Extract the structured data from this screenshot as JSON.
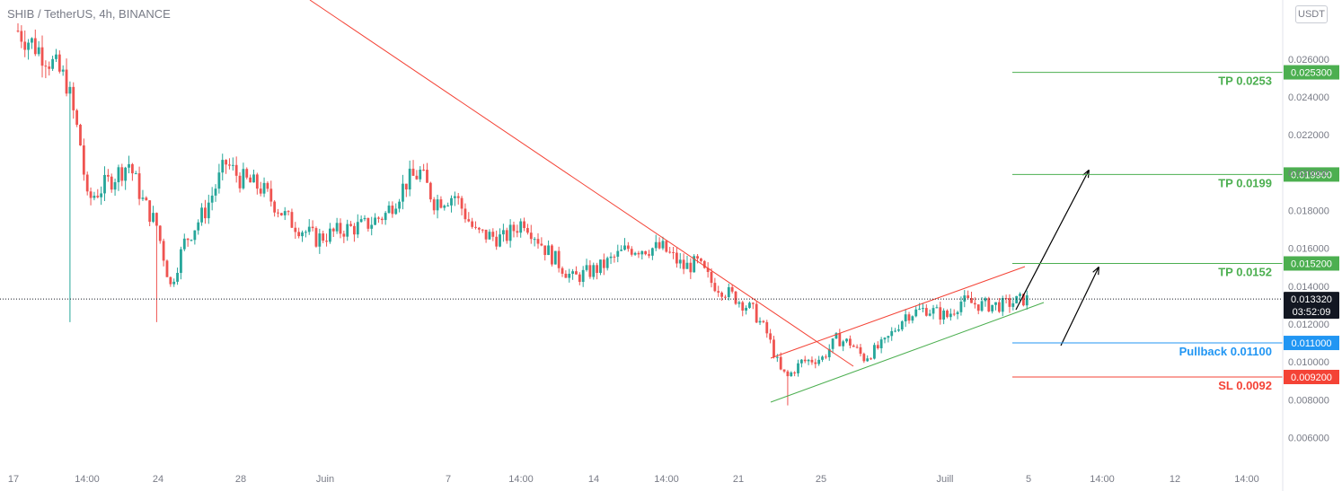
{
  "header": {
    "symbol_line": "SHIB / TetherUS, 4h, BINANCE",
    "currency_badge": "USDT"
  },
  "colors": {
    "up": "#26a69a",
    "down": "#ef5350",
    "upTrend": "#4caf50",
    "redLine": "#f44336",
    "blue": "#2196f3"
  },
  "chart_data": {
    "type": "candlestick",
    "timeframe": "4h",
    "ylim": [
      0.0055,
      0.0286
    ],
    "y_ticks": [
      "0.026000",
      "0.024000",
      "0.022000",
      "0.020000",
      "0.018000",
      "0.016000",
      "0.014000",
      "0.012000",
      "0.010000",
      "0.008000",
      "0.006000"
    ],
    "x_ticks": [
      "17",
      "14:00",
      "24",
      "28",
      "Juin",
      "7",
      "14:00",
      "14",
      "14:00",
      "21",
      "25",
      "Juill",
      "5",
      "14:00",
      "12",
      "14:00"
    ],
    "current_price": "0.013320",
    "countdown": "03:52:09",
    "levels": [
      {
        "label": "TP 0.0253",
        "tag": "0.025300",
        "value": 0.0253,
        "color": "#4caf50"
      },
      {
        "label": "TP 0.0199",
        "tag": "0.019900",
        "value": 0.0199,
        "color": "#4caf50"
      },
      {
        "label": "TP 0.0152",
        "tag": "0.015200",
        "value": 0.0152,
        "color": "#4caf50"
      },
      {
        "label": "Pullback 0.01100",
        "tag": "0.011000",
        "value": 0.011,
        "color": "#2196f3"
      },
      {
        "label": "SL 0.0092",
        "tag": "0.009200",
        "value": 0.0092,
        "color": "#f44336"
      }
    ],
    "close_path": [
      [
        0,
        0.0275
      ],
      [
        8,
        0.0262
      ],
      [
        14,
        0.0248
      ],
      [
        18,
        0.0215
      ],
      [
        20,
        0.0185
      ],
      [
        26,
        0.0195
      ],
      [
        32,
        0.0205
      ],
      [
        36,
        0.0185
      ],
      [
        40,
        0.0172
      ],
      [
        44,
        0.014
      ],
      [
        48,
        0.0163
      ],
      [
        54,
        0.018
      ],
      [
        60,
        0.0205
      ],
      [
        64,
        0.0197
      ],
      [
        70,
        0.0192
      ],
      [
        78,
        0.0175
      ],
      [
        86,
        0.0165
      ],
      [
        94,
        0.017
      ],
      [
        100,
        0.0172
      ],
      [
        106,
        0.0178
      ],
      [
        112,
        0.0195
      ],
      [
        116,
        0.02
      ],
      [
        120,
        0.0185
      ],
      [
        126,
        0.0188
      ],
      [
        132,
        0.0168
      ],
      [
        140,
        0.0165
      ],
      [
        146,
        0.0175
      ],
      [
        152,
        0.016
      ],
      [
        160,
        0.0144
      ],
      [
        168,
        0.015
      ],
      [
        176,
        0.016
      ],
      [
        186,
        0.016
      ],
      [
        192,
        0.015
      ],
      [
        196,
        0.0152
      ],
      [
        200,
        0.0142
      ],
      [
        206,
        0.0135
      ],
      [
        212,
        0.0127
      ],
      [
        216,
        0.0115
      ],
      [
        220,
        0.0095
      ],
      [
        222,
        0.0092
      ],
      [
        226,
        0.01
      ],
      [
        232,
        0.0102
      ],
      [
        236,
        0.0112
      ],
      [
        240,
        0.011
      ],
      [
        244,
        0.0102
      ],
      [
        250,
        0.011
      ],
      [
        256,
        0.0125
      ],
      [
        262,
        0.0128
      ],
      [
        268,
        0.0124
      ],
      [
        272,
        0.0132
      ],
      [
        278,
        0.013
      ],
      [
        284,
        0.013
      ],
      [
        290,
        0.0133
      ]
    ],
    "trendlines": [
      {
        "name": "downtrend",
        "color": "#f44336",
        "x": [
          "17 13:00",
          "25 11:00"
        ],
        "y": [
          0.0288,
          0.0112
        ]
      },
      {
        "name": "channel-top",
        "color": "#f44336",
        "x": [
          "22",
          "4 Juill"
        ],
        "y": [
          0.0104,
          0.0152
        ]
      },
      {
        "name": "channel-bottom",
        "color": "#4caf50",
        "x": [
          "22",
          "4 Juill"
        ],
        "y": [
          0.0082,
          0.0133
        ]
      }
    ],
    "arrows": [
      {
        "from": "Pullback 0.01100",
        "to": "TP 0.0152"
      },
      {
        "from": "0.013",
        "to": "TP 0.0199"
      }
    ]
  }
}
